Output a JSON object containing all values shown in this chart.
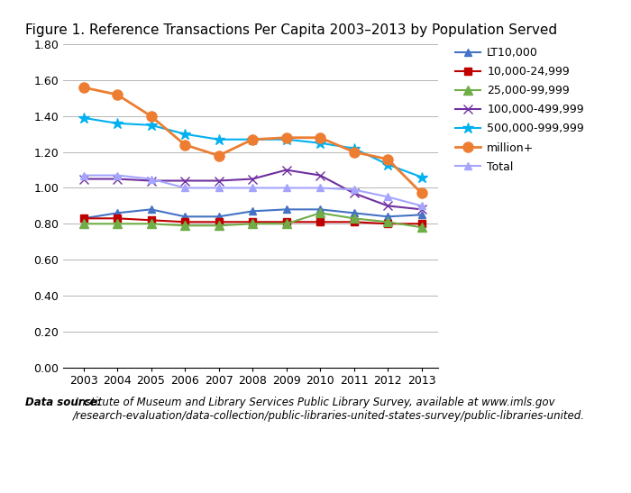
{
  "title": "Figure 1. Reference Transactions Per Capita 2003–2013 by Population Served",
  "years": [
    2003,
    2004,
    2005,
    2006,
    2007,
    2008,
    2009,
    2010,
    2011,
    2012,
    2013
  ],
  "series": {
    "LT10,000": {
      "values": [
        0.83,
        0.86,
        0.88,
        0.84,
        0.84,
        0.87,
        0.88,
        0.88,
        0.86,
        0.84,
        0.85
      ],
      "color": "#4472C4",
      "marker": "^",
      "linewidth": 1.5,
      "markersize": 6
    },
    "10,000-24,999": {
      "values": [
        0.83,
        0.83,
        0.82,
        0.81,
        0.81,
        0.81,
        0.81,
        0.81,
        0.81,
        0.8,
        0.8
      ],
      "color": "#C00000",
      "marker": "s",
      "linewidth": 1.5,
      "markersize": 6
    },
    "25,000-99,999": {
      "values": [
        0.8,
        0.8,
        0.8,
        0.79,
        0.79,
        0.8,
        0.8,
        0.86,
        0.83,
        0.81,
        0.78
      ],
      "color": "#70AD47",
      "marker": "^",
      "linewidth": 1.5,
      "markersize": 7
    },
    "100,000-499,999": {
      "values": [
        1.05,
        1.05,
        1.04,
        1.04,
        1.04,
        1.05,
        1.1,
        1.07,
        0.97,
        0.9,
        0.88
      ],
      "color": "#7030A0",
      "marker": "x",
      "linewidth": 1.5,
      "markersize": 7
    },
    "500,000-999,999": {
      "values": [
        1.39,
        1.36,
        1.35,
        1.3,
        1.27,
        1.27,
        1.27,
        1.25,
        1.22,
        1.13,
        1.06
      ],
      "color": "#00B0F0",
      "marker": "*",
      "linewidth": 1.5,
      "markersize": 9
    },
    "million+": {
      "values": [
        1.56,
        1.52,
        1.4,
        1.24,
        1.18,
        1.27,
        1.28,
        1.28,
        1.2,
        1.16,
        0.97
      ],
      "color": "#ED7D31",
      "marker": "o",
      "linewidth": 2.0,
      "markersize": 8
    },
    "Total": {
      "values": [
        1.07,
        1.07,
        1.05,
        1.0,
        1.0,
        1.0,
        1.0,
        1.0,
        0.99,
        0.95,
        0.9
      ],
      "color": "#A5A5FF",
      "marker": "^",
      "linewidth": 1.5,
      "markersize": 6
    }
  },
  "ylim": [
    0.0,
    1.8
  ],
  "yticks": [
    0.0,
    0.2,
    0.4,
    0.6,
    0.8,
    1.0,
    1.2,
    1.4,
    1.6,
    1.8
  ],
  "footer_italic": "Data source:",
  "footer_normal": " Institute of Museum and Library Services Public Library Survey, available at www.imls.gov\n/research-evaluation/data-collection/public-libraries-united-states-survey/public-libraries-united.",
  "bg_color": "#FFFFFF",
  "header_bar_color": "#8DC63F",
  "grid_color": "#AAAAAA"
}
